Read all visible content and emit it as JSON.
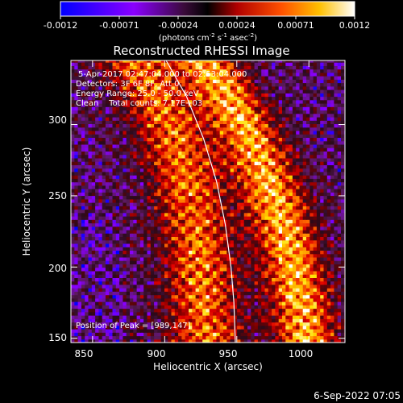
{
  "colorbar": {
    "ticks": [
      "-0.0012",
      "-0.00071",
      "-0.00024",
      "0.00024",
      "0.00071",
      "0.0012"
    ],
    "unit_prefix": "(photons cm",
    "unit_exp1": "-2",
    "unit_mid": " s",
    "unit_exp2": "-1",
    "unit_tail": " asec",
    "unit_exp3": "-2",
    "unit_close": ")"
  },
  "title": "Reconstructed RHESSI Image",
  "info": {
    "time": "5-Apr-2017 02:47:04.000 to 02:53:04.000",
    "detectors": "Detectors: 3F 6F 8F, Att 0",
    "energy": "Energy Range: 25.0 - 50.0 keV",
    "clean": "Clean    Total counts: 7.17E+03",
    "peak": "Position of Peak = [989,147]"
  },
  "chart_data": {
    "type": "heatmap",
    "title": "Reconstructed RHESSI Image",
    "xlabel": "Heliocentric X (arcsec)",
    "ylabel": "Heliocentric Y (arcsec)",
    "xlim": [
      835,
      1025
    ],
    "ylim": [
      147,
      345
    ],
    "x_ticks": [
      850,
      900,
      950,
      1000
    ],
    "y_ticks": [
      150,
      200,
      250,
      300
    ],
    "color_range": [
      -0.0012,
      0.0012
    ],
    "colormap": [
      "#0000ff",
      "#8a00ff",
      "#5a1a5a",
      "#2a0a1a",
      "#7a0000",
      "#e00000",
      "#ff7000",
      "#ffe000",
      "#ffffff"
    ],
    "limb_curve": [
      [
        901,
        345
      ],
      [
        915,
        320
      ],
      [
        927,
        290
      ],
      [
        936,
        260
      ],
      [
        942,
        230
      ],
      [
        946,
        200
      ],
      [
        948,
        175
      ],
      [
        949,
        147
      ]
    ],
    "peak_position": [
      989,
      147
    ]
  },
  "footer": {
    "date": "6-Sep-2022 07:05"
  }
}
